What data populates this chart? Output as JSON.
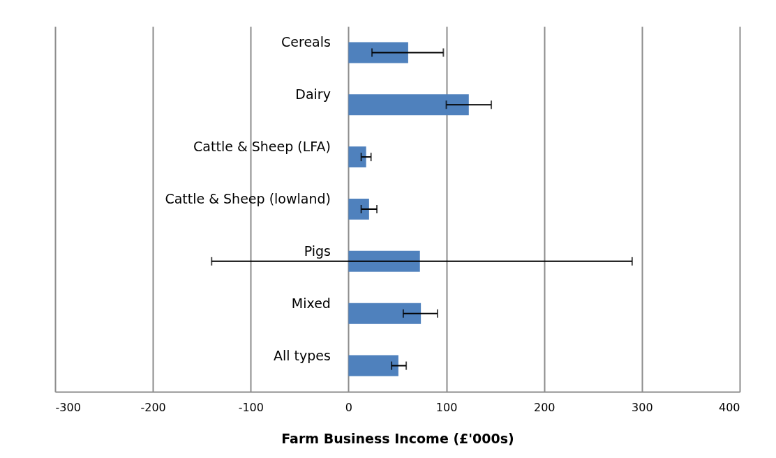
{
  "chart_data": {
    "type": "bar",
    "orientation": "horizontal",
    "xlabel": "Farm Business Income (£'000s)",
    "categories": [
      "Cereals",
      "Dairy",
      "Cattle & Sheep (LFA)",
      "Cattle & Sheep (lowland)",
      "Pigs",
      "Mixed",
      "All types"
    ],
    "values": [
      61,
      123,
      18,
      21,
      73,
      74,
      51
    ],
    "errors": [
      [
        24,
        97
      ],
      [
        100,
        146
      ],
      [
        13,
        23
      ],
      [
        13,
        29
      ],
      [
        -140,
        290
      ],
      [
        56,
        91
      ],
      [
        44,
        59
      ]
    ],
    "color": "#4f81bd",
    "xlim": [
      -300,
      400
    ],
    "xticks": [
      -300,
      -200,
      -100,
      0,
      100,
      200,
      300,
      400
    ],
    "grid": "x"
  }
}
